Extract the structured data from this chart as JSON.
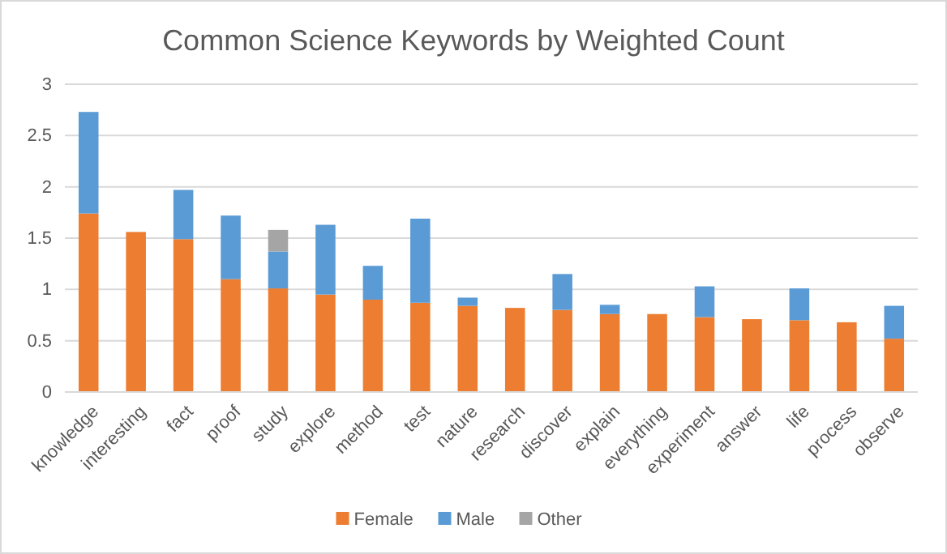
{
  "chart_data": {
    "type": "bar",
    "title": "Common Science Keywords by Weighted Count",
    "categories": [
      "knowledge",
      "interesting",
      "fact",
      "proof",
      "study",
      "explore",
      "method",
      "test",
      "nature",
      "research",
      "discover",
      "explain",
      "everything",
      "experiment",
      "answer",
      "life",
      "process",
      "observe"
    ],
    "stacked": true,
    "ylim": [
      0,
      3
    ],
    "yticks": [
      0,
      0.5,
      1,
      1.5,
      2,
      2.5,
      3
    ],
    "grid": "y",
    "legend": "bottom",
    "series": [
      {
        "name": "Female",
        "color": "#ed7d31",
        "values": [
          1.74,
          1.56,
          1.49,
          1.1,
          1.01,
          0.95,
          0.9,
          0.87,
          0.84,
          0.82,
          0.8,
          0.76,
          0.76,
          0.73,
          0.71,
          0.7,
          0.68,
          0.52
        ]
      },
      {
        "name": "Male",
        "color": "#5b9bd5",
        "values": [
          0.99,
          null,
          0.48,
          0.62,
          0.36,
          0.68,
          0.33,
          0.82,
          0.08,
          null,
          0.35,
          0.09,
          null,
          0.3,
          null,
          0.31,
          null,
          0.32
        ]
      },
      {
        "name": "Other",
        "color": "#a5a5a5",
        "values": [
          null,
          null,
          null,
          null,
          0.21,
          null,
          null,
          null,
          null,
          null,
          null,
          null,
          null,
          null,
          null,
          null,
          null,
          null
        ]
      }
    ]
  }
}
